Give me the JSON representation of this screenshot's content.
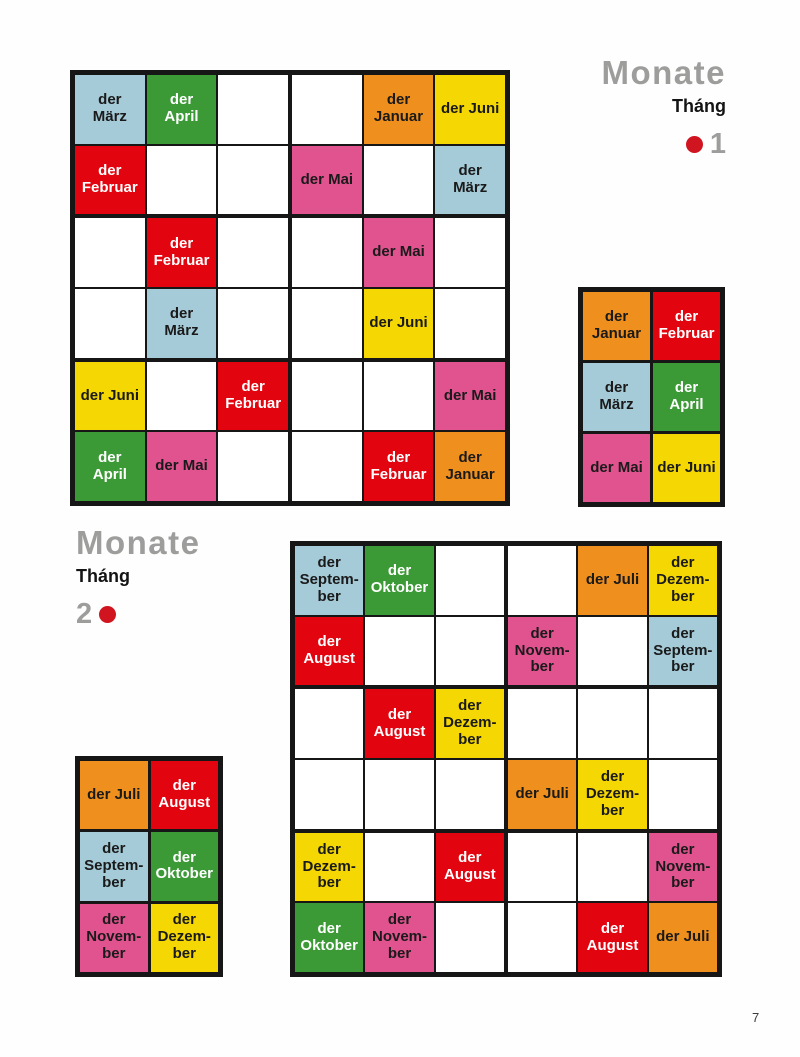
{
  "page": {
    "number": "7"
  },
  "colors": {
    "red": {
      "bg": "#e2050f",
      "fg": "#ffffff"
    },
    "orange": {
      "bg": "#ef8f1e",
      "fg": "#1a1a1a"
    },
    "yellow": {
      "bg": "#f4d703",
      "fg": "#1a1a1a"
    },
    "green": {
      "bg": "#3c9a36",
      "fg": "#ffffff"
    },
    "blue": {
      "bg": "#a5cbd8",
      "fg": "#1a1a1a"
    },
    "pink": {
      "bg": "#e0538f",
      "fg": "#1a1a1a"
    }
  },
  "sections": [
    {
      "title": "Monate",
      "subtitle": "Tháng",
      "number": "1",
      "dot_position": "before"
    },
    {
      "title": "Monate",
      "subtitle": "Tháng",
      "number": "2",
      "dot_position": "after"
    }
  ],
  "puzzle1": {
    "type": "sudoku-6x6",
    "cells": [
      [
        {
          "text": "der\nMärz",
          "color": "blue"
        },
        {
          "text": "der\nApril",
          "color": "green"
        },
        null,
        null,
        {
          "text": "der\nJanuar",
          "color": "orange"
        },
        {
          "text": "der Juni",
          "color": "yellow"
        }
      ],
      [
        {
          "text": "der\nFebruar",
          "color": "red"
        },
        null,
        null,
        {
          "text": "der Mai",
          "color": "pink"
        },
        null,
        {
          "text": "der\nMärz",
          "color": "blue"
        }
      ],
      [
        null,
        {
          "text": "der\nFebruar",
          "color": "red"
        },
        null,
        null,
        {
          "text": "der Mai",
          "color": "pink"
        },
        null
      ],
      [
        null,
        {
          "text": "der\nMärz",
          "color": "blue"
        },
        null,
        null,
        {
          "text": "der Juni",
          "color": "yellow"
        },
        null
      ],
      [
        {
          "text": "der Juni",
          "color": "yellow"
        },
        null,
        {
          "text": "der\nFebruar",
          "color": "red"
        },
        null,
        null,
        {
          "text": "der Mai",
          "color": "pink"
        }
      ],
      [
        {
          "text": "der\nApril",
          "color": "green"
        },
        {
          "text": "der Mai",
          "color": "pink"
        },
        null,
        null,
        {
          "text": "der\nFebruar",
          "color": "red"
        },
        {
          "text": "der\nJanuar",
          "color": "orange"
        }
      ]
    ]
  },
  "key1": {
    "cells": [
      [
        {
          "text": "der\nJanuar",
          "color": "orange"
        },
        {
          "text": "der\nFebruar",
          "color": "red"
        }
      ],
      [
        {
          "text": "der\nMärz",
          "color": "blue"
        },
        {
          "text": "der\nApril",
          "color": "green"
        }
      ],
      [
        {
          "text": "der Mai",
          "color": "pink"
        },
        {
          "text": "der Juni",
          "color": "yellow"
        }
      ]
    ]
  },
  "puzzle2": {
    "type": "sudoku-6x6",
    "cells": [
      [
        {
          "text": "der\nSeptem-\nber",
          "color": "blue"
        },
        {
          "text": "der\nOktober",
          "color": "green"
        },
        null,
        null,
        {
          "text": "der Juli",
          "color": "orange"
        },
        {
          "text": "der\nDezem-\nber",
          "color": "yellow"
        }
      ],
      [
        {
          "text": "der\nAugust",
          "color": "red"
        },
        null,
        null,
        {
          "text": "der\nNovem-\nber",
          "color": "pink"
        },
        null,
        {
          "text": "der\nSeptem-\nber",
          "color": "blue"
        }
      ],
      [
        null,
        {
          "text": "der\nAugust",
          "color": "red"
        },
        {
          "text": "der\nDezem-\nber",
          "color": "yellow"
        },
        null,
        null,
        null
      ],
      [
        null,
        null,
        null,
        {
          "text": "der Juli",
          "color": "orange"
        },
        {
          "text": "der\nDezem-\nber",
          "color": "yellow"
        },
        null
      ],
      [
        {
          "text": "der\nDezem-\nber",
          "color": "yellow"
        },
        null,
        {
          "text": "der\nAugust",
          "color": "red"
        },
        null,
        null,
        {
          "text": "der\nNovem-\nber",
          "color": "pink"
        }
      ],
      [
        {
          "text": "der\nOktober",
          "color": "green"
        },
        {
          "text": "der\nNovem-\nber",
          "color": "pink"
        },
        null,
        null,
        {
          "text": "der\nAugust",
          "color": "red"
        },
        {
          "text": "der Juli",
          "color": "orange"
        }
      ]
    ]
  },
  "key2": {
    "cells": [
      [
        {
          "text": "der Juli",
          "color": "orange"
        },
        {
          "text": "der\nAugust",
          "color": "red"
        }
      ],
      [
        {
          "text": "der\nSeptem-\nber",
          "color": "blue"
        },
        {
          "text": "der\nOktober",
          "color": "green"
        }
      ],
      [
        {
          "text": "der\nNovem-\nber",
          "color": "pink"
        },
        {
          "text": "der\nDezem-\nber",
          "color": "yellow"
        }
      ]
    ]
  }
}
